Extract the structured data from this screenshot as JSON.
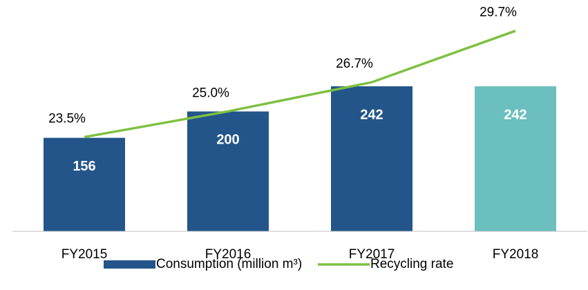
{
  "chart_data": {
    "type": "bar_line",
    "categories": [
      "FY2015",
      "FY2016",
      "FY2017",
      "FY2018"
    ],
    "series": [
      {
        "name": "Consumption (million m³)",
        "type": "bar",
        "color": "#23558a",
        "colors": [
          "#23558a",
          "#23558a",
          "#23558a",
          "#6bbfbf"
        ],
        "values": [
          156,
          200,
          242,
          242
        ]
      },
      {
        "name": "Recycling rate",
        "type": "line",
        "axis": "y2",
        "color": "#7dc142",
        "values": [
          23.5,
          25.0,
          26.7,
          29.7
        ],
        "value_labels": [
          "23.5%",
          "25.0%",
          "26.7%",
          "29.7%"
        ]
      }
    ],
    "ylim": [
      0,
      386
    ],
    "y2lim": [
      18,
      31.5
    ],
    "legend": "bottom"
  }
}
